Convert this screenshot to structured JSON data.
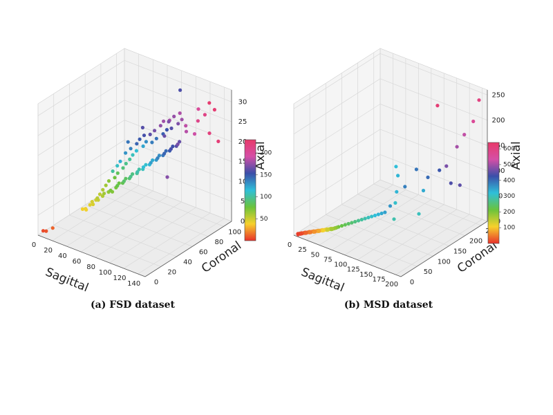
{
  "chart_data": [
    {
      "type": "scatter",
      "subtype": "3d",
      "caption": "(a) FSD dataset",
      "xlabel": "Sagittal",
      "ylabel": "Coronal",
      "zlabel": "Axial",
      "xlim": [
        0,
        150
      ],
      "ylim": [
        0,
        110
      ],
      "zlim": [
        0,
        33
      ],
      "x_ticks": [
        0,
        20,
        40,
        60,
        80,
        100,
        120,
        140
      ],
      "y_ticks": [
        0,
        20,
        40,
        60,
        80,
        100
      ],
      "z_ticks": [
        0,
        5,
        10,
        15,
        20,
        25,
        30
      ],
      "colorbar": {
        "min": 0,
        "max": 230,
        "ticks": [
          50,
          100,
          150,
          200
        ],
        "colormap": [
          "#e8312b",
          "#f7d12c",
          "#6ac33c",
          "#2fbfd9",
          "#3b4fa9",
          "#d54fa6",
          "#e83a6a"
        ]
      },
      "grid": true,
      "points": [
        [
          4,
          3,
          1,
          6
        ],
        [
          7,
          4,
          1,
          8
        ],
        [
          14,
          6,
          2,
          12
        ],
        [
          42,
          28,
          7,
          45
        ],
        [
          44,
          30,
          7,
          47
        ],
        [
          46,
          32,
          8,
          50
        ],
        [
          48,
          33,
          8,
          52
        ],
        [
          50,
          30,
          9,
          55
        ],
        [
          52,
          35,
          9,
          58
        ],
        [
          55,
          34,
          10,
          62
        ],
        [
          57,
          38,
          10,
          66
        ],
        [
          60,
          40,
          10,
          70
        ],
        [
          62,
          36,
          11,
          72
        ],
        [
          63,
          42,
          11,
          74
        ],
        [
          65,
          44,
          12,
          78
        ],
        [
          67,
          40,
          12,
          80
        ],
        [
          68,
          46,
          12,
          82
        ],
        [
          70,
          48,
          13,
          86
        ],
        [
          72,
          44,
          13,
          88
        ],
        [
          73,
          50,
          13,
          90
        ],
        [
          75,
          52,
          14,
          94
        ],
        [
          77,
          48,
          14,
          96
        ],
        [
          78,
          55,
          14,
          98
        ],
        [
          80,
          56,
          15,
          102
        ],
        [
          82,
          52,
          15,
          104
        ],
        [
          83,
          58,
          15,
          108
        ],
        [
          85,
          60,
          16,
          112
        ],
        [
          86,
          56,
          16,
          114
        ],
        [
          88,
          62,
          16,
          118
        ],
        [
          90,
          64,
          17,
          122
        ],
        [
          92,
          60,
          17,
          126
        ],
        [
          93,
          66,
          17,
          128
        ],
        [
          95,
          68,
          18,
          132
        ],
        [
          97,
          64,
          18,
          136
        ],
        [
          98,
          70,
          18,
          140
        ],
        [
          100,
          72,
          19,
          144
        ],
        [
          102,
          68,
          19,
          146
        ],
        [
          103,
          74,
          19,
          150
        ],
        [
          105,
          76,
          20,
          154
        ],
        [
          107,
          72,
          20,
          156
        ],
        [
          108,
          78,
          20,
          160
        ],
        [
          110,
          80,
          21,
          164
        ],
        [
          112,
          76,
          21,
          168
        ],
        [
          95,
          80,
          25,
          170
        ],
        [
          98,
          84,
          26,
          176
        ],
        [
          100,
          70,
          23,
          165
        ],
        [
          104,
          86,
          27,
          182
        ],
        [
          110,
          88,
          24,
          186
        ],
        [
          115,
          60,
          15,
          172
        ],
        [
          118,
          92,
          22,
          190
        ],
        [
          120,
          95,
          28,
          200
        ],
        [
          125,
          90,
          26,
          210
        ],
        [
          128,
          96,
          27,
          212
        ],
        [
          130,
          100,
          22,
          218
        ],
        [
          135,
          102,
          28,
          224
        ],
        [
          132,
          98,
          30,
          226
        ],
        [
          138,
          104,
          20,
          222
        ],
        [
          100,
          90,
          32,
          158
        ],
        [
          60,
          60,
          20,
          140
        ],
        [
          75,
          65,
          24,
          160
        ],
        [
          80,
          70,
          22,
          162
        ],
        [
          56,
          50,
          15,
          110
        ],
        [
          58,
          52,
          16,
          120
        ],
        [
          54,
          46,
          14,
          100
        ],
        [
          62,
          55,
          18,
          130
        ],
        [
          66,
          58,
          19,
          136
        ],
        [
          70,
          62,
          20,
          146
        ],
        [
          72,
          64,
          21,
          150
        ],
        [
          76,
          66,
          22,
          156
        ],
        [
          84,
          72,
          23,
          168
        ],
        [
          88,
          76,
          24,
          174
        ],
        [
          90,
          78,
          25,
          178
        ],
        [
          94,
          82,
          25,
          180
        ],
        [
          40,
          25,
          6,
          40
        ],
        [
          38,
          26,
          6,
          42
        ],
        [
          36,
          24,
          6,
          40
        ],
        [
          45,
          28,
          8,
          48
        ],
        [
          47,
          36,
          9,
          54
        ],
        [
          49,
          38,
          10,
          58
        ],
        [
          51,
          40,
          11,
          62
        ],
        [
          53,
          42,
          12,
          68
        ],
        [
          59,
          44,
          13,
          76
        ],
        [
          61,
          46,
          14,
          84
        ],
        [
          64,
          50,
          15,
          92
        ],
        [
          66,
          52,
          16,
          96
        ],
        [
          69,
          54,
          17,
          100
        ],
        [
          71,
          56,
          18,
          108
        ],
        [
          74,
          58,
          19,
          114
        ],
        [
          79,
          62,
          20,
          124
        ],
        [
          81,
          64,
          21,
          132
        ],
        [
          87,
          66,
          21,
          138
        ],
        [
          91,
          68,
          22,
          142
        ],
        [
          96,
          72,
          23,
          148
        ],
        [
          99,
          74,
          24,
          152
        ],
        [
          101,
          78,
          24,
          160
        ],
        [
          106,
          82,
          25,
          170
        ],
        [
          109,
          84,
          26,
          178
        ],
        [
          113,
          86,
          23,
          184
        ]
      ]
    },
    {
      "type": "scatter",
      "subtype": "3d",
      "caption": "(b) MSD dataset",
      "xlabel": "Sagittal",
      "ylabel": "Coronal",
      "zlabel": "Axial",
      "xlim": [
        0,
        210
      ],
      "ylim": [
        0,
        270
      ],
      "zlim": [
        0,
        260
      ],
      "x_ticks": [
        0,
        25,
        50,
        75,
        100,
        125,
        150,
        175,
        200
      ],
      "y_ticks": [
        0,
        50,
        100,
        150,
        200,
        250
      ],
      "z_ticks": [
        0,
        50,
        100,
        150,
        200,
        250
      ],
      "colorbar": {
        "min": 0,
        "max": 640,
        "ticks": [
          100,
          200,
          300,
          400,
          500,
          600
        ],
        "colormap": [
          "#e8312b",
          "#f7d12c",
          "#6ac33c",
          "#2fbfd9",
          "#3b4fa9",
          "#d54fa6",
          "#e83a6a"
        ]
      },
      "grid": true,
      "points": [
        [
          5,
          5,
          3,
          10
        ],
        [
          8,
          6,
          4,
          15
        ],
        [
          10,
          8,
          5,
          20
        ],
        [
          12,
          10,
          5,
          25
        ],
        [
          14,
          12,
          6,
          30
        ],
        [
          16,
          10,
          6,
          35
        ],
        [
          18,
          14,
          7,
          40
        ],
        [
          20,
          16,
          8,
          45
        ],
        [
          22,
          14,
          8,
          50
        ],
        [
          24,
          18,
          9,
          55
        ],
        [
          26,
          20,
          10,
          60
        ],
        [
          28,
          18,
          10,
          65
        ],
        [
          30,
          22,
          11,
          70
        ],
        [
          32,
          24,
          12,
          75
        ],
        [
          34,
          22,
          12,
          80
        ],
        [
          36,
          26,
          13,
          90
        ],
        [
          38,
          28,
          14,
          100
        ],
        [
          40,
          26,
          14,
          110
        ],
        [
          42,
          30,
          15,
          120
        ],
        [
          44,
          32,
          16,
          130
        ],
        [
          46,
          30,
          16,
          140
        ],
        [
          48,
          34,
          17,
          150
        ],
        [
          50,
          36,
          18,
          160
        ],
        [
          52,
          34,
          18,
          170
        ],
        [
          54,
          38,
          19,
          180
        ],
        [
          56,
          40,
          20,
          190
        ],
        [
          58,
          42,
          21,
          200
        ],
        [
          60,
          44,
          22,
          210
        ],
        [
          64,
          48,
          24,
          220
        ],
        [
          68,
          52,
          26,
          230
        ],
        [
          72,
          56,
          28,
          240
        ],
        [
          76,
          60,
          30,
          250
        ],
        [
          80,
          64,
          32,
          260
        ],
        [
          84,
          68,
          34,
          270
        ],
        [
          88,
          72,
          36,
          280
        ],
        [
          92,
          76,
          38,
          290
        ],
        [
          96,
          80,
          40,
          300
        ],
        [
          100,
          84,
          42,
          310
        ],
        [
          104,
          88,
          44,
          320
        ],
        [
          108,
          92,
          46,
          330
        ],
        [
          112,
          96,
          48,
          340
        ],
        [
          116,
          100,
          50,
          350
        ],
        [
          120,
          110,
          60,
          360
        ],
        [
          130,
          140,
          90,
          380
        ],
        [
          140,
          160,
          120,
          390
        ],
        [
          150,
          180,
          100,
          400
        ],
        [
          160,
          200,
          110,
          420
        ],
        [
          170,
          220,
          80,
          440
        ],
        [
          175,
          240,
          70,
          450
        ],
        [
          180,
          190,
          130,
          470
        ],
        [
          190,
          230,
          180,
          520
        ],
        [
          195,
          250,
          200,
          560
        ],
        [
          185,
          215,
          160,
          500
        ],
        [
          200,
          260,
          240,
          600
        ],
        [
          150,
          210,
          230,
          620
        ],
        [
          170,
          120,
          60,
          300
        ],
        [
          140,
          90,
          50,
          290
        ],
        [
          130,
          110,
          70,
          310
        ],
        [
          120,
          130,
          80,
          330
        ],
        [
          160,
          150,
          90,
          340
        ],
        [
          110,
          150,
          100,
          330
        ],
        [
          100,
          160,
          110,
          320
        ],
        [
          6,
          4,
          2,
          8
        ],
        [
          9,
          7,
          3,
          12
        ],
        [
          11,
          9,
          4,
          18
        ],
        [
          13,
          11,
          5,
          22
        ],
        [
          15,
          13,
          6,
          28
        ],
        [
          17,
          12,
          6,
          32
        ],
        [
          19,
          15,
          7,
          38
        ],
        [
          21,
          17,
          8,
          42
        ],
        [
          23,
          16,
          8,
          48
        ],
        [
          25,
          19,
          9,
          52
        ],
        [
          27,
          21,
          10,
          58
        ],
        [
          29,
          20,
          10,
          62
        ],
        [
          31,
          23,
          11,
          68
        ],
        [
          33,
          25,
          12,
          72
        ],
        [
          35,
          24,
          12,
          78
        ],
        [
          37,
          27,
          13,
          86
        ],
        [
          39,
          29,
          14,
          96
        ],
        [
          41,
          28,
          14,
          106
        ],
        [
          43,
          31,
          15,
          116
        ],
        [
          45,
          33,
          16,
          126
        ],
        [
          47,
          32,
          16,
          136
        ],
        [
          49,
          35,
          17,
          146
        ],
        [
          51,
          37,
          18,
          156
        ],
        [
          53,
          36,
          18,
          166
        ],
        [
          55,
          39,
          19,
          176
        ],
        [
          57,
          41,
          20,
          186
        ]
      ]
    }
  ]
}
